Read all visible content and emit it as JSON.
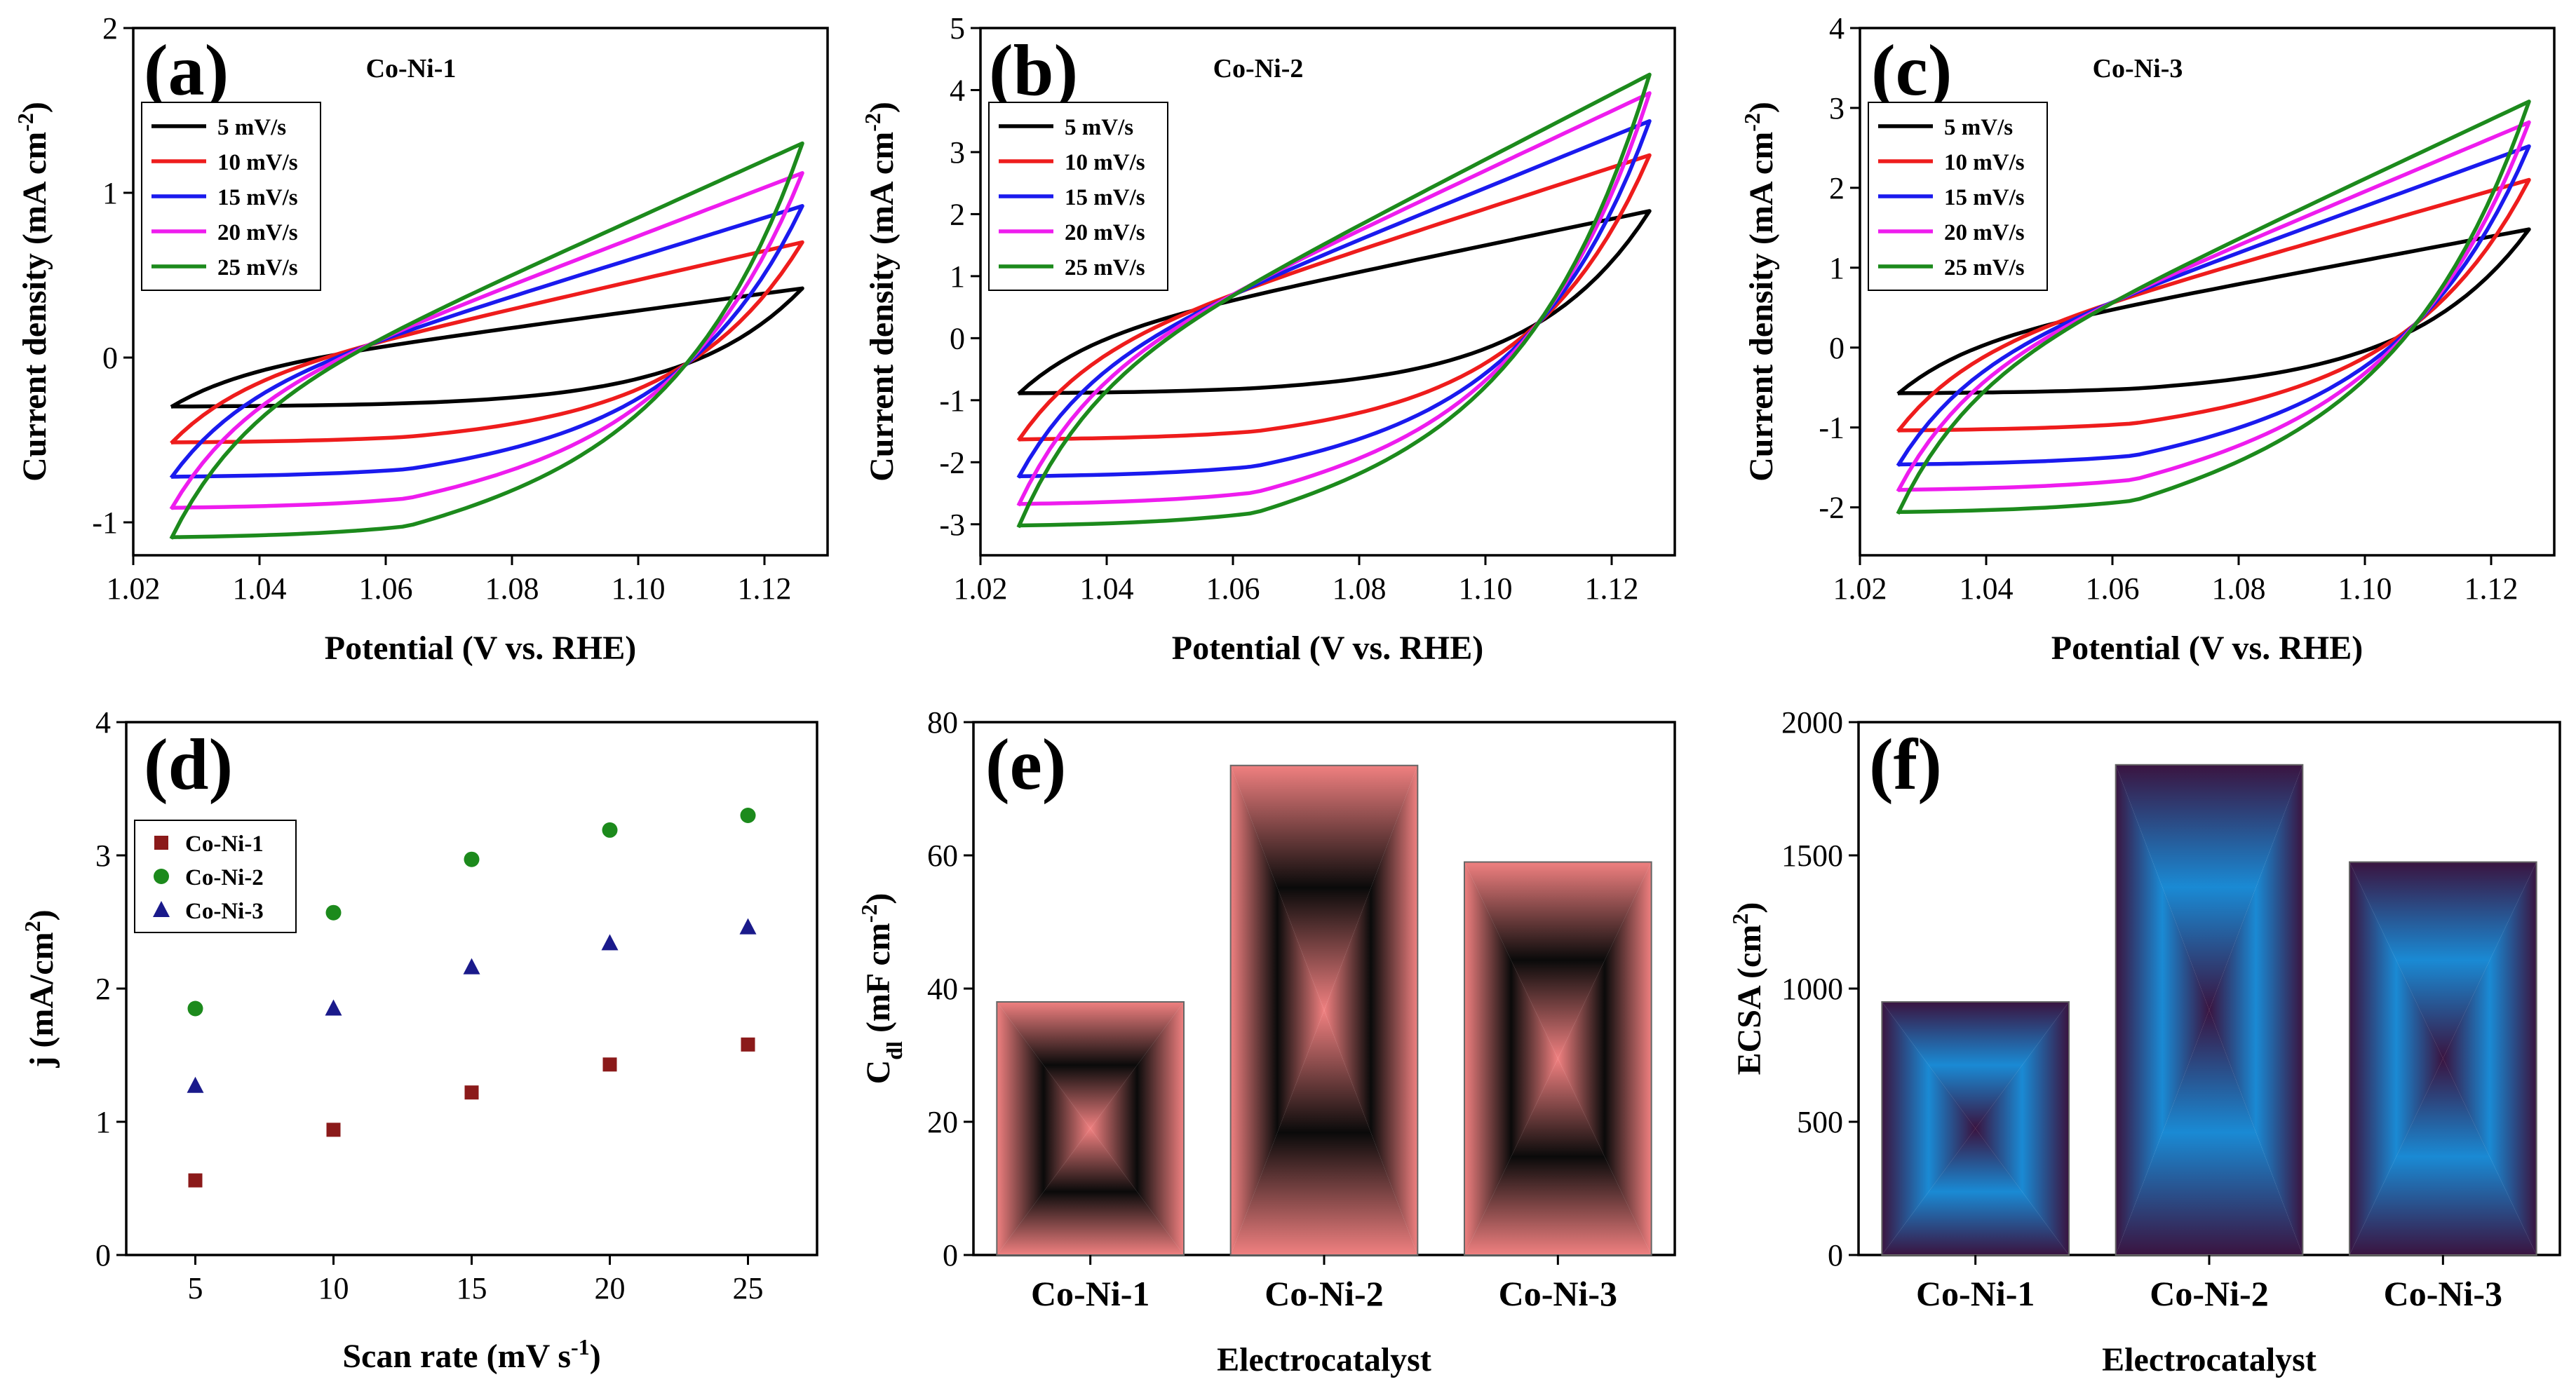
{
  "chart_data": [
    {
      "id": "a",
      "type": "line",
      "panel_label": "(a)",
      "title": "Co-Ni-1",
      "xlabel": "Potential (V vs. RHE)",
      "ylabel": "Current density (mA cm⁻²)",
      "xlim": [
        1.02,
        1.13
      ],
      "ylim": [
        -1.2,
        2
      ],
      "xticks": [
        "1.02",
        "1.04",
        "1.06",
        "1.08",
        "1.10",
        "1.12"
      ],
      "xtick_values": [
        1.02,
        1.04,
        1.06,
        1.08,
        1.1,
        1.12
      ],
      "yticks": [
        "-1",
        "0",
        "1",
        "2"
      ],
      "ytick_values": [
        -1,
        0,
        1,
        2
      ],
      "legend_position": "top-left",
      "potential_window": [
        1.026,
        1.126
      ],
      "series": [
        {
          "name": "5 mV/s",
          "color": "#000000",
          "upper_start": -0.3,
          "upper_end": 0.42,
          "lower_end": -0.3,
          "lower_start": -0.3,
          "sag": 0.0,
          "cross_x": 1.1,
          "cross_y": -0.3
        },
        {
          "name": "10 mV/s",
          "color": "#ee1c1c",
          "upper_start": -0.52,
          "upper_end": 0.7,
          "lower_end": -0.52,
          "lower_start": -0.52,
          "sag": 0.0,
          "cross_x": 1.1,
          "cross_y": -0.38
        },
        {
          "name": "15 mV/s",
          "color": "#1a1aee",
          "upper_start": -0.73,
          "upper_end": 0.92,
          "lower_end": -0.73,
          "lower_start": -0.73,
          "sag": 0.0,
          "cross_x": 1.1,
          "cross_y": -0.4
        },
        {
          "name": "20 mV/s",
          "color": "#ee1cee",
          "upper_start": -0.92,
          "upper_end": 1.12,
          "lower_end": -0.92,
          "lower_start": -0.92,
          "sag": 0.0,
          "cross_x": 1.1,
          "cross_y": -0.4
        },
        {
          "name": "25 mV/s",
          "color": "#1c8a1c",
          "upper_start": -1.1,
          "upper_end": 1.3,
          "lower_end": -1.1,
          "lower_start": -1.1,
          "sag": 0.0,
          "cross_x": 1.1,
          "cross_y": -0.4
        }
      ]
    },
    {
      "id": "b",
      "type": "line",
      "panel_label": "(b)",
      "title": "Co-Ni-2",
      "xlabel": "Potential (V vs. RHE)",
      "ylabel": "Current density (mA cm⁻²)",
      "xlim": [
        1.02,
        1.13
      ],
      "ylim": [
        -3.5,
        5
      ],
      "xticks": [
        "1.02",
        "1.04",
        "1.06",
        "1.08",
        "1.10",
        "1.12"
      ],
      "xtick_values": [
        1.02,
        1.04,
        1.06,
        1.08,
        1.1,
        1.12
      ],
      "yticks": [
        "-3",
        "-2",
        "-1",
        "0",
        "1",
        "2",
        "3",
        "4",
        "5"
      ],
      "ytick_values": [
        -3,
        -2,
        -1,
        0,
        1,
        2,
        3,
        4,
        5
      ],
      "legend_position": "top-left",
      "potential_window": [
        1.026,
        1.126
      ],
      "series": [
        {
          "name": "5 mV/s",
          "color": "#000000",
          "upper_start": -0.9,
          "upper_end": 2.05,
          "lower_end": -0.9,
          "lower_start": -0.9,
          "cross_x": 1.09,
          "cross_y": -0.8
        },
        {
          "name": "10 mV/s",
          "color": "#ee1c1c",
          "upper_start": -1.65,
          "upper_end": 2.95,
          "lower_end": -1.65,
          "lower_start": -1.65,
          "cross_x": 1.088,
          "cross_y": -1.1
        },
        {
          "name": "15 mV/s",
          "color": "#1a1aee",
          "upper_start": -2.25,
          "upper_end": 3.5,
          "lower_end": -2.25,
          "lower_start": -2.25,
          "cross_x": 1.088,
          "cross_y": -1.1
        },
        {
          "name": "20 mV/s",
          "color": "#ee1cee",
          "upper_start": -2.7,
          "upper_end": 3.95,
          "lower_end": -2.7,
          "lower_start": -2.7,
          "cross_x": 1.088,
          "cross_y": -1.1
        },
        {
          "name": "25 mV/s",
          "color": "#1c8a1c",
          "upper_start": -3.05,
          "upper_end": 4.25,
          "lower_end": -3.05,
          "lower_start": -3.05,
          "cross_x": 1.088,
          "cross_y": -1.1
        }
      ]
    },
    {
      "id": "c",
      "type": "line",
      "panel_label": "(c)",
      "title": "Co-Ni-3",
      "xlabel": "Potential (V vs. RHE)",
      "ylabel": "Current density (mA cm⁻²)",
      "xlim": [
        1.02,
        1.13
      ],
      "ylim": [
        -2.6,
        4
      ],
      "xticks": [
        "1.02",
        "1.04",
        "1.06",
        "1.08",
        "1.10",
        "1.12"
      ],
      "xtick_values": [
        1.02,
        1.04,
        1.06,
        1.08,
        1.1,
        1.12
      ],
      "yticks": [
        "-2",
        "-1",
        "0",
        "1",
        "2",
        "3",
        "4"
      ],
      "ytick_values": [
        -2,
        -1,
        0,
        1,
        2,
        3,
        4
      ],
      "legend_position": "top-left",
      "potential_window": [
        1.026,
        1.126
      ],
      "series": [
        {
          "name": "5 mV/s",
          "color": "#000000",
          "upper_start": -0.58,
          "upper_end": 1.48,
          "lower_end": -0.58,
          "lower_start": -0.58,
          "cross_x": 1.092,
          "cross_y": -0.4
        },
        {
          "name": "10 mV/s",
          "color": "#ee1c1c",
          "upper_start": -1.05,
          "upper_end": 2.1,
          "lower_end": -1.05,
          "lower_start": -1.05,
          "cross_x": 1.092,
          "cross_y": -0.4
        },
        {
          "name": "15 mV/s",
          "color": "#1a1aee",
          "upper_start": -1.48,
          "upper_end": 2.52,
          "lower_end": -1.48,
          "lower_start": -1.48,
          "cross_x": 1.092,
          "cross_y": -0.4
        },
        {
          "name": "20 mV/s",
          "color": "#ee1cee",
          "upper_start": -1.8,
          "upper_end": 2.82,
          "lower_end": -1.8,
          "lower_start": -1.8,
          "cross_x": 1.092,
          "cross_y": -0.4
        },
        {
          "name": "25 mV/s",
          "color": "#1c8a1c",
          "upper_start": -2.08,
          "upper_end": 3.08,
          "lower_end": -2.08,
          "lower_start": -2.08,
          "cross_x": 1.092,
          "cross_y": -0.4
        }
      ]
    },
    {
      "id": "d",
      "type": "scatter",
      "panel_label": "(d)",
      "xlabel": "Scan rate (mV s⁻¹)",
      "ylabel": "j (mA/cm²)",
      "xlim": [
        2.5,
        27.5
      ],
      "ylim": [
        0,
        4
      ],
      "xticks": [
        "5",
        "10",
        "15",
        "20",
        "25"
      ],
      "xtick_values": [
        5,
        10,
        15,
        20,
        25
      ],
      "yticks": [
        "0",
        "1",
        "2",
        "3",
        "4"
      ],
      "ytick_values": [
        0,
        1,
        2,
        3,
        4
      ],
      "legend_position": "upper-left",
      "x": [
        5,
        10,
        15,
        20,
        25
      ],
      "series": [
        {
          "name": "Co-Ni-1",
          "color": "#8b1a1a",
          "marker": "square",
          "values": [
            0.56,
            0.94,
            1.22,
            1.43,
            1.58
          ]
        },
        {
          "name": "Co-Ni-2",
          "color": "#1c8a1c",
          "marker": "circle",
          "values": [
            1.85,
            2.57,
            2.97,
            3.19,
            3.3
          ]
        },
        {
          "name": "Co-Ni-3",
          "color": "#1a1a8b",
          "marker": "triangle",
          "values": [
            1.27,
            1.85,
            2.16,
            2.34,
            2.46
          ]
        }
      ]
    },
    {
      "id": "e",
      "type": "bar",
      "panel_label": "(e)",
      "xlabel": "Electrocatalyst",
      "ylabel": "C_dl (mF cm⁻²)",
      "ylabel_main": "C",
      "ylabel_sub": "dl",
      "ylabel_rest": " (mF cm",
      "ylabel_sup": "-2",
      "ylabel_close": ")",
      "categories": [
        "Co-Ni-1",
        "Co-Ni-2",
        "Co-Ni-3"
      ],
      "values": [
        38,
        73.5,
        59
      ],
      "ylim": [
        0,
        80
      ],
      "yticks": [
        "0",
        "20",
        "40",
        "60",
        "80"
      ],
      "ytick_values": [
        0,
        20,
        40,
        60,
        80
      ],
      "fill_outer": "#f08080",
      "fill_inner": "#0a0a0a"
    },
    {
      "id": "f",
      "type": "bar",
      "panel_label": "(f)",
      "xlabel": "Electrocatalyst",
      "ylabel": "ECSA (cm²)",
      "categories": [
        "Co-Ni-1",
        "Co-Ni-2",
        "Co-Ni-3"
      ],
      "values": [
        950,
        1840,
        1475
      ],
      "ylim": [
        0,
        2000
      ],
      "yticks": [
        "0",
        "500",
        "1000",
        "1500",
        "2000"
      ],
      "ytick_values": [
        0,
        500,
        1000,
        1500,
        2000
      ],
      "fill_outer": "#3a1440",
      "fill_inner": "#1a8ad4"
    }
  ],
  "text": {
    "a_ylabel_main": "Current density (mA cm",
    "a_ylabel_sup": "-2",
    "a_ylabel_close": ")",
    "d_ylabel_main": "j (mA/cm",
    "d_ylabel_sup": "2",
    "d_ylabel_close": ")",
    "d_xlabel_main": "Scan rate (mV s",
    "d_xlabel_sup": "-1",
    "d_xlabel_close": ")",
    "f_ylabel_main": "ECSA (cm",
    "f_ylabel_sup": "2",
    "f_ylabel_close": ")"
  }
}
